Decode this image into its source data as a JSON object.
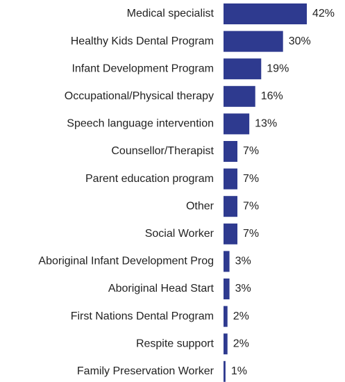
{
  "chart_data": {
    "type": "bar",
    "orientation": "horizontal",
    "color": "#2e3a8f",
    "categories": [
      "Medical specialist",
      "Healthy Kids Dental Program",
      "Infant Development Program",
      "Occupational/Physical therapy",
      "Speech language intervention",
      "Counsellor/Therapist",
      "Parent education program",
      "Other",
      "Social Worker",
      "Aboriginal Infant Development Prog",
      "Aboriginal Head Start",
      "First Nations Dental Program",
      "Respite support",
      "Family Preservation Worker"
    ],
    "values": [
      42,
      30,
      19,
      16,
      13,
      7,
      7,
      7,
      7,
      3,
      3,
      2,
      2,
      1
    ],
    "value_labels": [
      "42%",
      "30%",
      "19%",
      "16%",
      "13%",
      "7%",
      "7%",
      "7%",
      "7%",
      "3%",
      "3%",
      "2%",
      "2%",
      "1%"
    ]
  }
}
